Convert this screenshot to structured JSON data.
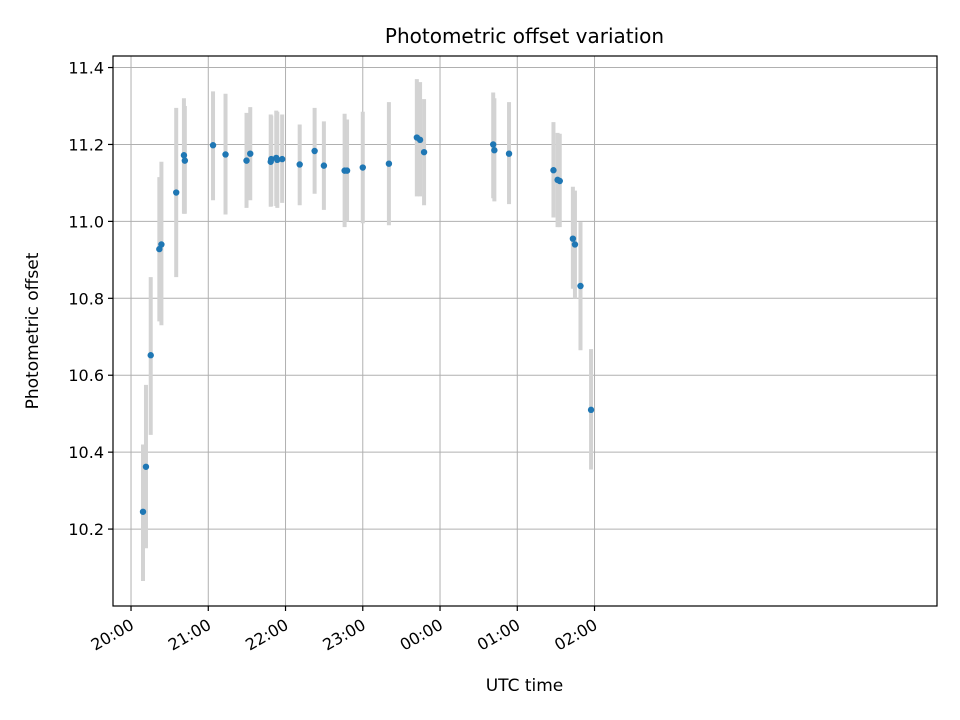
{
  "chart_data": {
    "type": "scatter",
    "title": "Photometric offset variation",
    "xlabel": "UTC time",
    "ylabel": "Photometric offset",
    "x_unit": "minutes after 20:00 UTC",
    "xlim": [
      -14,
      626
    ],
    "ylim": [
      10.0,
      11.43
    ],
    "xticks": [
      {
        "value": 0,
        "label": "20:00"
      },
      {
        "value": 60,
        "label": "21:00"
      },
      {
        "value": 120,
        "label": "22:00"
      },
      {
        "value": 180,
        "label": "23:00"
      },
      {
        "value": 240,
        "label": "00:00"
      },
      {
        "value": 300,
        "label": "01:00"
      },
      {
        "value": 360,
        "label": "02:00"
      }
    ],
    "yticks": [
      {
        "value": 10.2,
        "label": "10.2"
      },
      {
        "value": 10.4,
        "label": "10.4"
      },
      {
        "value": 10.6,
        "label": "10.6"
      },
      {
        "value": 10.8,
        "label": "10.8"
      },
      {
        "value": 11.0,
        "label": "11.0"
      },
      {
        "value": 11.2,
        "label": "11.2"
      },
      {
        "value": 11.4,
        "label": "11.4"
      }
    ],
    "grid": true,
    "marker_color": "#1f77b4",
    "errorbar_color": "#d3d3d3",
    "points": [
      {
        "x": 9.3,
        "y": 10.245,
        "lo": 10.065,
        "hi": 10.42
      },
      {
        "x": 11.6,
        "y": 10.362,
        "lo": 10.15,
        "hi": 10.575
      },
      {
        "x": 15.3,
        "y": 10.652,
        "lo": 10.445,
        "hi": 10.855
      },
      {
        "x": 22.0,
        "y": 10.928,
        "lo": 10.74,
        "hi": 11.115
      },
      {
        "x": 23.6,
        "y": 10.94,
        "lo": 10.73,
        "hi": 11.155
      },
      {
        "x": 35.1,
        "y": 11.075,
        "lo": 10.855,
        "hi": 11.295
      },
      {
        "x": 41.1,
        "y": 11.172,
        "lo": 11.02,
        "hi": 11.32
      },
      {
        "x": 41.8,
        "y": 11.158,
        "lo": 11.02,
        "hi": 11.3
      },
      {
        "x": 63.7,
        "y": 11.198,
        "lo": 11.055,
        "hi": 11.338
      },
      {
        "x": 73.4,
        "y": 11.174,
        "lo": 11.018,
        "hi": 11.332
      },
      {
        "x": 89.7,
        "y": 11.158,
        "lo": 11.035,
        "hi": 11.282
      },
      {
        "x": 92.6,
        "y": 11.176,
        "lo": 11.055,
        "hi": 11.297
      },
      {
        "x": 108.5,
        "y": 11.155,
        "lo": 11.038,
        "hi": 11.278
      },
      {
        "x": 108.9,
        "y": 11.162,
        "lo": 11.04,
        "hi": 11.275
      },
      {
        "x": 112.8,
        "y": 11.165,
        "lo": 11.04,
        "hi": 11.288
      },
      {
        "x": 113.6,
        "y": 11.16,
        "lo": 11.035,
        "hi": 11.285
      },
      {
        "x": 117.4,
        "y": 11.162,
        "lo": 11.048,
        "hi": 11.278
      },
      {
        "x": 131.0,
        "y": 11.148,
        "lo": 11.042,
        "hi": 11.252
      },
      {
        "x": 142.6,
        "y": 11.183,
        "lo": 11.072,
        "hi": 11.295
      },
      {
        "x": 149.8,
        "y": 11.145,
        "lo": 11.03,
        "hi": 11.26
      },
      {
        "x": 165.9,
        "y": 11.132,
        "lo": 10.985,
        "hi": 11.28
      },
      {
        "x": 167.8,
        "y": 11.132,
        "lo": 11.0,
        "hi": 11.265
      },
      {
        "x": 180.0,
        "y": 11.14,
        "lo": 10.995,
        "hi": 11.285
      },
      {
        "x": 200.3,
        "y": 11.15,
        "lo": 10.99,
        "hi": 11.31
      },
      {
        "x": 222.0,
        "y": 11.218,
        "lo": 11.065,
        "hi": 11.37
      },
      {
        "x": 224.5,
        "y": 11.212,
        "lo": 11.065,
        "hi": 11.362
      },
      {
        "x": 227.6,
        "y": 11.18,
        "lo": 11.042,
        "hi": 11.318
      },
      {
        "x": 281.3,
        "y": 11.2,
        "lo": 11.06,
        "hi": 11.335
      },
      {
        "x": 282.2,
        "y": 11.185,
        "lo": 11.052,
        "hi": 11.32
      },
      {
        "x": 293.6,
        "y": 11.176,
        "lo": 11.045,
        "hi": 11.31
      },
      {
        "x": 328.1,
        "y": 11.133,
        "lo": 11.01,
        "hi": 11.258
      },
      {
        "x": 331.3,
        "y": 11.108,
        "lo": 10.985,
        "hi": 11.23
      },
      {
        "x": 333.0,
        "y": 11.105,
        "lo": 10.985,
        "hi": 11.228
      },
      {
        "x": 343.2,
        "y": 10.955,
        "lo": 10.825,
        "hi": 11.09
      },
      {
        "x": 344.8,
        "y": 10.94,
        "lo": 10.8,
        "hi": 11.08
      },
      {
        "x": 349.1,
        "y": 10.832,
        "lo": 10.665,
        "hi": 10.998
      },
      {
        "x": 357.3,
        "y": 10.51,
        "lo": 10.355,
        "hi": 10.668
      }
    ]
  }
}
